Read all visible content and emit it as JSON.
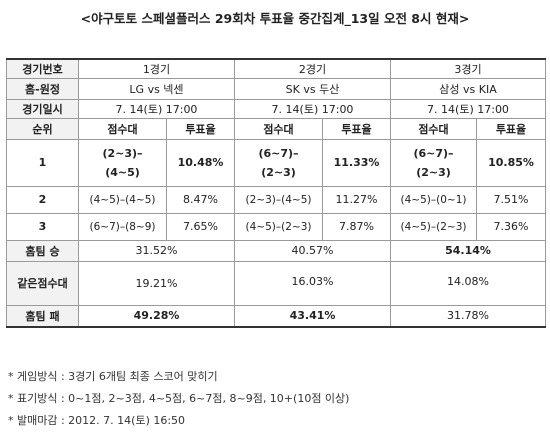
{
  "title": "<야구토토 스페셜플러스 29회차 투표율 중간집계_13일 오전 8시 현재>",
  "labels": {
    "game_no": "경기번호",
    "home_away": "홈-원정",
    "date": "경기일시",
    "rank": "순위",
    "score_range": "점수대",
    "vote_rate": "투표율",
    "home_win": "홈팀 승",
    "same_score": "같은점수대",
    "home_loss": "홈팀 패"
  },
  "games": [
    {
      "number": "1경기",
      "matchup": "LG vs 넥센",
      "datetime": "7. 14(토) 17:00",
      "ranks": [
        {
          "rank": "1",
          "score_a": "(2~3)–",
          "score_b": "(4~5)",
          "rate": "10.48%"
        },
        {
          "rank": "2",
          "score": "(4~5)–(4~5)",
          "rate": "8.47%"
        },
        {
          "rank": "3",
          "score": "(6~7)–(8~9)",
          "rate": "7.65%"
        }
      ],
      "home_win": "31.52%",
      "same_score": "19.21%",
      "home_loss": "49.28%"
    },
    {
      "number": "2경기",
      "matchup": "SK vs 두산",
      "datetime": "7. 14(토) 17:00",
      "ranks": [
        {
          "rank": "1",
          "score_a": "(6~7)–",
          "score_b": "(2~3)",
          "rate": "11.33%"
        },
        {
          "rank": "2",
          "score": "(2~3)–(4~5)",
          "rate": "11.27%"
        },
        {
          "rank": "3",
          "score": "(4~5)–(2~3)",
          "rate": "7.87%"
        }
      ],
      "home_win": "40.57%",
      "same_score": "16.03%",
      "home_loss": "43.41%"
    },
    {
      "number": "3경기",
      "matchup": "삼성 vs KIA",
      "datetime": "7. 14(토) 17:00",
      "ranks": [
        {
          "rank": "1",
          "score_a": "(6~7)–",
          "score_b": "(2~3)",
          "rate": "10.85%"
        },
        {
          "rank": "2",
          "score": "(4~5)–(0~1)",
          "rate": "7.51%"
        },
        {
          "rank": "3",
          "score": "(4~5)–(2~3)",
          "rate": "7.36%"
        }
      ],
      "home_win": "54.14%",
      "same_score": "14.08%",
      "home_loss": "31.78%"
    }
  ],
  "notes": [
    "*  게임방식 : 3경기 6개팀 최종 스코어 맞히기",
    "*  표기방식 : 0~1점, 2~3점, 4~5점, 6~7점, 8~9점, 10+(10점 이상)",
    "*  발매마감 : 2012. 7. 14(토) 16:50"
  ]
}
